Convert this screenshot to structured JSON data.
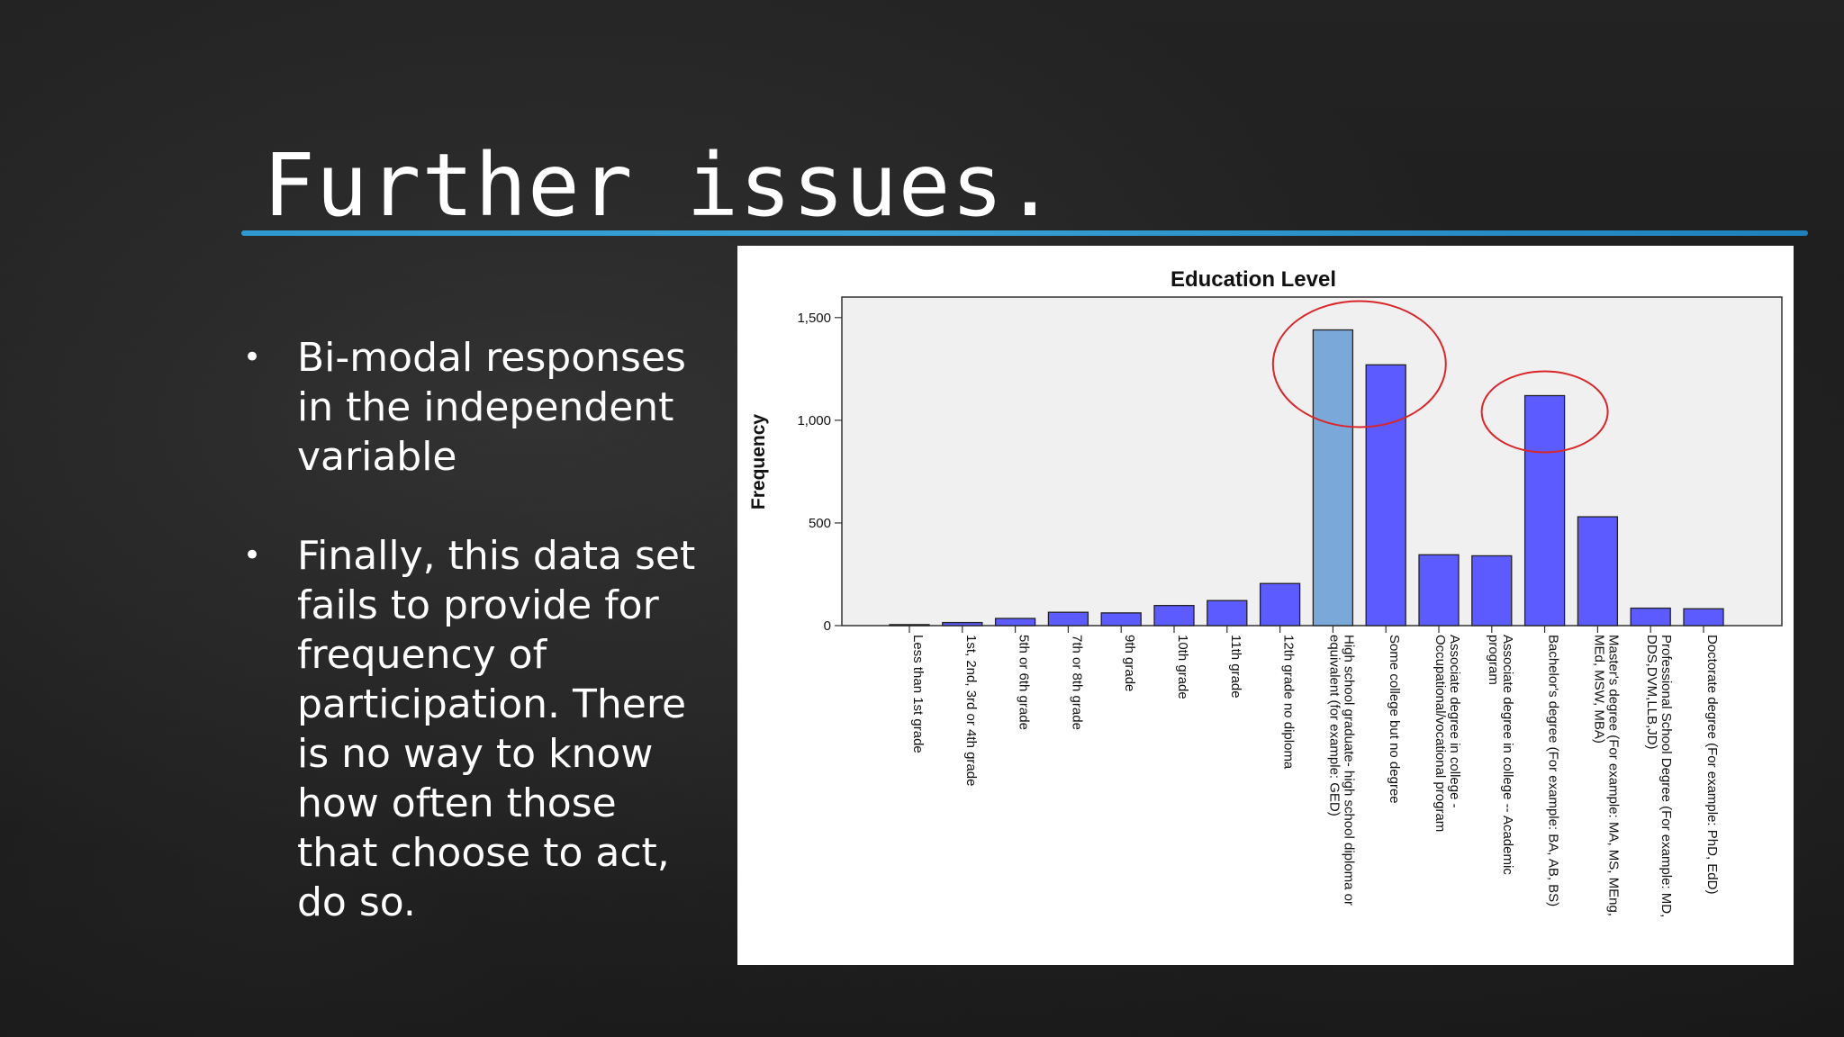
{
  "slide": {
    "title": "Further issues.",
    "bullets": [
      "Bi-modal responses in the independent variable",
      "Finally, this data set fails to provide for frequency of participation. There is no way to know how often those that choose to act, do so."
    ],
    "bullet_glyph": "•"
  },
  "colors": {
    "accent_underline": "#2e9ed8",
    "bar": "#5b5bff",
    "bar_highlight": "#7aa9d9",
    "circle": "#d9262a",
    "plot_bg": "#f0f0f0"
  },
  "chart_data": {
    "type": "bar",
    "title": "Education Level",
    "xlabel": "",
    "ylabel": "Frequency",
    "ylim": [
      0,
      1600
    ],
    "yticks": [
      0,
      500,
      1000,
      1500
    ],
    "ytick_labels": [
      "0",
      "500",
      "1,000",
      "1,500"
    ],
    "grid": false,
    "categories": [
      [
        "Less than 1st grade"
      ],
      [
        "1st, 2nd, 3rd or 4th grade"
      ],
      [
        "5th or 6th grade"
      ],
      [
        "7th or 8th grade"
      ],
      [
        "9th grade"
      ],
      [
        "10th grade"
      ],
      [
        "11th grade"
      ],
      [
        "12th grade no diploma"
      ],
      [
        "High school graduate- high school diploma or",
        "equivalent (for example: GED)"
      ],
      [
        "Some college but no degree"
      ],
      [
        "Associate degree in college -",
        "Occupational/vocational program"
      ],
      [
        "Associate degree in college -- Academic",
        "program"
      ],
      [
        "Bachelor's degree (For example: BA, AB, BS)"
      ],
      [
        "Master's degree (For example: MA, MS, MEng,",
        "MEd, MSW, MBA)"
      ],
      [
        "Professional School Degree (For example: MD,",
        "DDS,DVM,LLB,JD)"
      ],
      [
        "Doctorate degree (For example: PhD, EdD)"
      ]
    ],
    "values": [
      5,
      15,
      35,
      65,
      62,
      98,
      122,
      205,
      1440,
      1270,
      345,
      340,
      1120,
      530,
      85,
      82
    ],
    "highlighted_index": 8,
    "annotations": [
      {
        "type": "circle",
        "around_indices": [
          8,
          9
        ]
      },
      {
        "type": "circle",
        "around_indices": [
          12
        ]
      }
    ]
  }
}
